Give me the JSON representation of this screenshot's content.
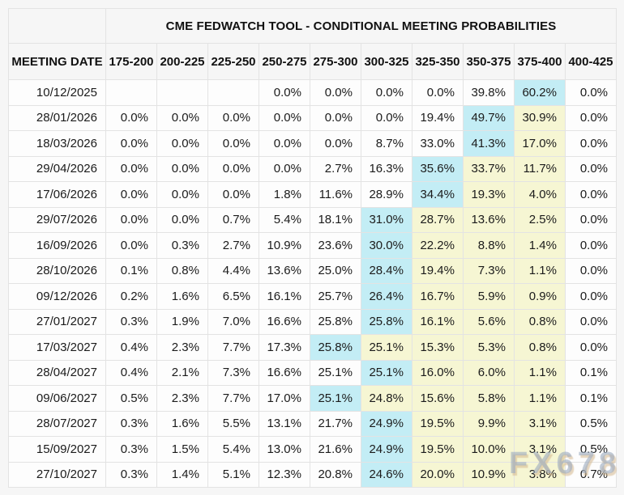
{
  "table": {
    "title": "CME FEDWATCH TOOL - CONDITIONAL MEETING PROBABILITIES",
    "date_col_header": "MEETING DATE",
    "rate_col_headers": [
      "175-200",
      "200-225",
      "225-250",
      "250-275",
      "275-300",
      "300-325",
      "325-350",
      "350-375",
      "375-400",
      "400-425"
    ],
    "rows": [
      {
        "date": "10/12/2025",
        "values": [
          "",
          "",
          "",
          "0.0%",
          "0.0%",
          "0.0%",
          "0.0%",
          "39.8%",
          "60.2%",
          "0.0%"
        ],
        "styles": [
          "",
          "",
          "",
          "",
          "",
          "",
          "",
          "",
          "c",
          ""
        ]
      },
      {
        "date": "28/01/2026",
        "values": [
          "0.0%",
          "0.0%",
          "0.0%",
          "0.0%",
          "0.0%",
          "0.0%",
          "19.4%",
          "49.7%",
          "30.9%",
          "0.0%"
        ],
        "styles": [
          "",
          "",
          "",
          "",
          "",
          "",
          "",
          "c",
          "y",
          ""
        ]
      },
      {
        "date": "18/03/2026",
        "values": [
          "0.0%",
          "0.0%",
          "0.0%",
          "0.0%",
          "0.0%",
          "8.7%",
          "33.0%",
          "41.3%",
          "17.0%",
          "0.0%"
        ],
        "styles": [
          "",
          "",
          "",
          "",
          "",
          "",
          "",
          "c",
          "y",
          ""
        ]
      },
      {
        "date": "29/04/2026",
        "values": [
          "0.0%",
          "0.0%",
          "0.0%",
          "0.0%",
          "2.7%",
          "16.3%",
          "35.6%",
          "33.7%",
          "11.7%",
          "0.0%"
        ],
        "styles": [
          "",
          "",
          "",
          "",
          "",
          "",
          "c",
          "y",
          "y",
          ""
        ]
      },
      {
        "date": "17/06/2026",
        "values": [
          "0.0%",
          "0.0%",
          "0.0%",
          "1.8%",
          "11.6%",
          "28.9%",
          "34.4%",
          "19.3%",
          "4.0%",
          "0.0%"
        ],
        "styles": [
          "",
          "",
          "",
          "",
          "",
          "",
          "c",
          "y",
          "y",
          ""
        ]
      },
      {
        "date": "29/07/2026",
        "values": [
          "0.0%",
          "0.0%",
          "0.7%",
          "5.4%",
          "18.1%",
          "31.0%",
          "28.7%",
          "13.6%",
          "2.5%",
          "0.0%"
        ],
        "styles": [
          "",
          "",
          "",
          "",
          "",
          "c",
          "y",
          "y",
          "y",
          ""
        ]
      },
      {
        "date": "16/09/2026",
        "values": [
          "0.0%",
          "0.3%",
          "2.7%",
          "10.9%",
          "23.6%",
          "30.0%",
          "22.2%",
          "8.8%",
          "1.4%",
          "0.0%"
        ],
        "styles": [
          "",
          "",
          "",
          "",
          "",
          "c",
          "y",
          "y",
          "y",
          ""
        ]
      },
      {
        "date": "28/10/2026",
        "values": [
          "0.1%",
          "0.8%",
          "4.4%",
          "13.6%",
          "25.0%",
          "28.4%",
          "19.4%",
          "7.3%",
          "1.1%",
          "0.0%"
        ],
        "styles": [
          "",
          "",
          "",
          "",
          "",
          "c",
          "y",
          "y",
          "y",
          ""
        ]
      },
      {
        "date": "09/12/2026",
        "values": [
          "0.2%",
          "1.6%",
          "6.5%",
          "16.1%",
          "25.7%",
          "26.4%",
          "16.7%",
          "5.9%",
          "0.9%",
          "0.0%"
        ],
        "styles": [
          "",
          "",
          "",
          "",
          "",
          "c",
          "y",
          "y",
          "y",
          ""
        ]
      },
      {
        "date": "27/01/2027",
        "values": [
          "0.3%",
          "1.9%",
          "7.0%",
          "16.6%",
          "25.8%",
          "25.8%",
          "16.1%",
          "5.6%",
          "0.8%",
          "0.0%"
        ],
        "styles": [
          "",
          "",
          "",
          "",
          "",
          "c",
          "y",
          "y",
          "y",
          ""
        ]
      },
      {
        "date": "17/03/2027",
        "values": [
          "0.4%",
          "2.3%",
          "7.7%",
          "17.3%",
          "25.8%",
          "25.1%",
          "15.3%",
          "5.3%",
          "0.8%",
          "0.0%"
        ],
        "styles": [
          "",
          "",
          "",
          "",
          "c",
          "y",
          "y",
          "y",
          "y",
          ""
        ]
      },
      {
        "date": "28/04/2027",
        "values": [
          "0.4%",
          "2.1%",
          "7.3%",
          "16.6%",
          "25.1%",
          "25.1%",
          "16.0%",
          "6.0%",
          "1.1%",
          "0.1%"
        ],
        "styles": [
          "",
          "",
          "",
          "",
          "",
          "c",
          "y",
          "y",
          "y",
          ""
        ]
      },
      {
        "date": "09/06/2027",
        "values": [
          "0.5%",
          "2.3%",
          "7.7%",
          "17.0%",
          "25.1%",
          "24.8%",
          "15.6%",
          "5.8%",
          "1.1%",
          "0.1%"
        ],
        "styles": [
          "",
          "",
          "",
          "",
          "c",
          "y",
          "y",
          "y",
          "y",
          ""
        ]
      },
      {
        "date": "28/07/2027",
        "values": [
          "0.3%",
          "1.6%",
          "5.5%",
          "13.1%",
          "21.7%",
          "24.9%",
          "19.5%",
          "9.9%",
          "3.1%",
          "0.5%"
        ],
        "styles": [
          "",
          "",
          "",
          "",
          "",
          "c",
          "y",
          "y",
          "y",
          ""
        ]
      },
      {
        "date": "15/09/2027",
        "values": [
          "0.3%",
          "1.5%",
          "5.4%",
          "13.0%",
          "21.6%",
          "24.9%",
          "19.5%",
          "10.0%",
          "3.1%",
          "0.5%"
        ],
        "styles": [
          "",
          "",
          "",
          "",
          "",
          "c",
          "y",
          "y",
          "y",
          ""
        ]
      },
      {
        "date": "27/10/2027",
        "values": [
          "0.3%",
          "1.4%",
          "5.1%",
          "12.3%",
          "20.8%",
          "24.6%",
          "20.0%",
          "10.9%",
          "3.8%",
          "0.7%"
        ],
        "styles": [
          "",
          "",
          "",
          "",
          "",
          "c",
          "y",
          "y",
          "y",
          ""
        ]
      }
    ]
  },
  "watermark": "FX678",
  "colors": {
    "highlight_cyan": "#c3edf5",
    "highlight_yellow": "#f6f6d3",
    "border": "#e3e3e3",
    "page_background": "#f6f6f6",
    "cell_background": "#fdfdfd"
  }
}
